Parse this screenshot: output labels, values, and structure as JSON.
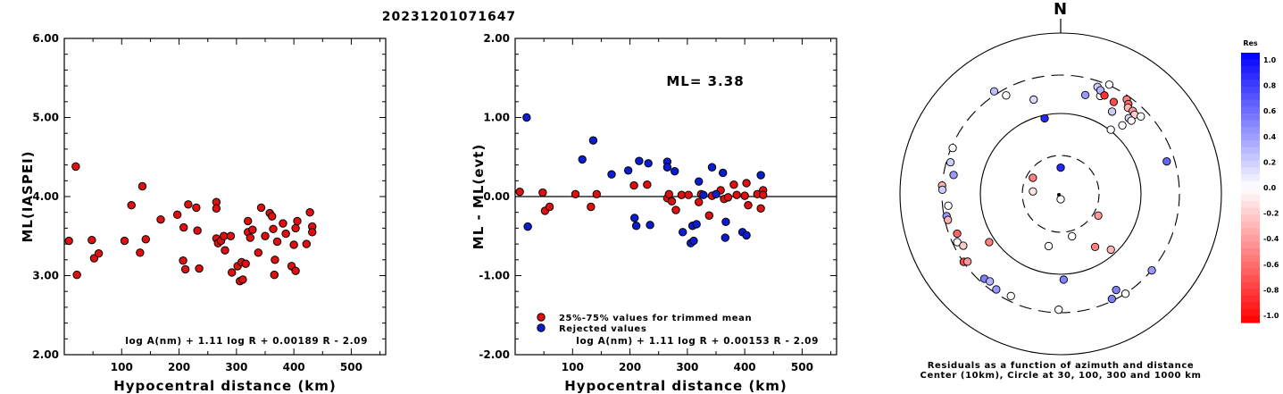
{
  "title": "20231201071647",
  "chart_data": [
    {
      "type": "scatter",
      "ylabel": "ML(IASPEI)",
      "xlabel": "Hypocentral distance (km)",
      "xlim": [
        0,
        560
      ],
      "ylim": [
        2.0,
        6.0
      ],
      "x_ticks": [
        "100",
        "200",
        "300",
        "400",
        "500"
      ],
      "y_ticks": [
        "2.00",
        "3.00",
        "4.00",
        "5.00",
        "6.00"
      ],
      "formula": "log A(nm) + 1.11 log R + 0.00189 R - 2.09",
      "marker_color": "#e01010",
      "points": [
        [
          8,
          3.44
        ],
        [
          20,
          4.38
        ],
        [
          22,
          3.01
        ],
        [
          48,
          3.45
        ],
        [
          52,
          3.22
        ],
        [
          60,
          3.28
        ],
        [
          105,
          3.44
        ],
        [
          117,
          3.89
        ],
        [
          132,
          3.29
        ],
        [
          136,
          4.13
        ],
        [
          142,
          3.46
        ],
        [
          168,
          3.71
        ],
        [
          197,
          3.77
        ],
        [
          207,
          3.19
        ],
        [
          208,
          3.61
        ],
        [
          211,
          3.08
        ],
        [
          216,
          3.9
        ],
        [
          230,
          3.86
        ],
        [
          232,
          3.57
        ],
        [
          235,
          3.09
        ],
        [
          265,
          3.93
        ],
        [
          265,
          3.85
        ],
        [
          265,
          3.47
        ],
        [
          268,
          3.41
        ],
        [
          273,
          3.44
        ],
        [
          278,
          3.5
        ],
        [
          280,
          3.32
        ],
        [
          290,
          3.5
        ],
        [
          292,
          3.04
        ],
        [
          302,
          3.12
        ],
        [
          306,
          2.93
        ],
        [
          309,
          3.17
        ],
        [
          311,
          2.95
        ],
        [
          316,
          3.15
        ],
        [
          320,
          3.69
        ],
        [
          320,
          3.55
        ],
        [
          324,
          3.48
        ],
        [
          328,
          3.58
        ],
        [
          338,
          3.29
        ],
        [
          343,
          3.86
        ],
        [
          350,
          3.5
        ],
        [
          358,
          3.79
        ],
        [
          362,
          3.75
        ],
        [
          364,
          3.59
        ],
        [
          366,
          3.01
        ],
        [
          367,
          3.2
        ],
        [
          371,
          3.43
        ],
        [
          381,
          3.66
        ],
        [
          386,
          3.53
        ],
        [
          396,
          3.12
        ],
        [
          400,
          3.39
        ],
        [
          403,
          3.6
        ],
        [
          403,
          3.06
        ],
        [
          406,
          3.69
        ],
        [
          422,
          3.4
        ],
        [
          428,
          3.8
        ],
        [
          432,
          3.62
        ],
        [
          432,
          3.55
        ]
      ]
    },
    {
      "type": "scatter",
      "ylabel": "ML - ML(evt)",
      "xlabel": "Hypocentral distance (km)",
      "xlim": [
        0,
        560
      ],
      "ylim": [
        -2.0,
        2.0
      ],
      "x_ticks": [
        "100",
        "200",
        "300",
        "400",
        "500"
      ],
      "y_ticks": [
        "-2.00",
        "-1.00",
        "0.00",
        "1.00",
        "2.00"
      ],
      "annotation": "ML=  3.38",
      "formula": "log A(nm) + 1.11 log R + 0.00153 R - 2.09",
      "legend": [
        {
          "label": "25%-75% values for trimmed mean",
          "color": "#e01010"
        },
        {
          "label": "Rejected values",
          "color": "#0a1ed0"
        }
      ],
      "accepted": [
        [
          8,
          0.06
        ],
        [
          48,
          0.05
        ],
        [
          52,
          -0.18
        ],
        [
          60,
          -0.13
        ],
        [
          105,
          0.03
        ],
        [
          132,
          -0.13
        ],
        [
          142,
          0.03
        ],
        [
          207,
          0.14
        ],
        [
          230,
          0.15
        ],
        [
          265,
          -0.02
        ],
        [
          268,
          0.03
        ],
        [
          273,
          -0.06
        ],
        [
          280,
          -0.17
        ],
        [
          290,
          0.02
        ],
        [
          302,
          0.02
        ],
        [
          320,
          -0.07
        ],
        [
          324,
          0.03
        ],
        [
          338,
          -0.24
        ],
        [
          343,
          0.01
        ],
        [
          358,
          0.08
        ],
        [
          364,
          -0.03
        ],
        [
          371,
          -0.01
        ],
        [
          381,
          0.15
        ],
        [
          386,
          0.02
        ],
        [
          400,
          0.01
        ],
        [
          403,
          0.17
        ],
        [
          406,
          -0.11
        ],
        [
          422,
          0.03
        ],
        [
          428,
          -0.15
        ],
        [
          432,
          0.08
        ],
        [
          432,
          0.02
        ]
      ],
      "rejected": [
        [
          20,
          1.0
        ],
        [
          22,
          -0.38
        ],
        [
          117,
          0.47
        ],
        [
          136,
          0.71
        ],
        [
          168,
          0.28
        ],
        [
          197,
          0.33
        ],
        [
          208,
          -0.27
        ],
        [
          211,
          -0.37
        ],
        [
          216,
          0.45
        ],
        [
          232,
          0.42
        ],
        [
          235,
          -0.36
        ],
        [
          265,
          0.44
        ],
        [
          265,
          0.37
        ],
        [
          278,
          0.32
        ],
        [
          292,
          -0.45
        ],
        [
          306,
          -0.59
        ],
        [
          309,
          -0.37
        ],
        [
          311,
          -0.56
        ],
        [
          316,
          -0.35
        ],
        [
          320,
          0.19
        ],
        [
          328,
          0.02
        ],
        [
          343,
          0.37
        ],
        [
          350,
          0.03
        ],
        [
          362,
          0.3
        ],
        [
          366,
          -0.52
        ],
        [
          367,
          -0.32
        ],
        [
          396,
          -0.45
        ],
        [
          403,
          -0.49
        ],
        [
          428,
          0.27
        ]
      ]
    },
    {
      "type": "polar-scatter",
      "north_label": "N",
      "caption_lines": [
        "Residuals as a function of azimuth and distance",
        "Center (10km), Circle at 30, 100, 300 and 1000 km"
      ],
      "colorbar": {
        "title": "Res",
        "ticks": [
          "1.0",
          "0.8",
          "0.6",
          "0.4",
          "0.2",
          "0.0",
          "-0.2",
          "-0.4",
          "-0.6",
          "-0.8",
          "-1.0"
        ],
        "max_color": "#0000ff",
        "min_color": "#ff0000"
      },
      "epicenter": [
        0,
        0
      ],
      "stations": [
        {
          "az": 0,
          "r": 0.49,
          "res": 0.85
        },
        {
          "az": 300,
          "r": 0.6,
          "res": -0.5
        },
        {
          "az": 275,
          "r": 0.52,
          "res": -0.1
        },
        {
          "az": 180,
          "r": 0.1,
          "res": 0.0
        },
        {
          "az": 165,
          "r": 0.82,
          "res": 0.0
        },
        {
          "az": 120,
          "r": 0.81,
          "res": -0.4
        },
        {
          "az": 32,
          "r": 1.81,
          "res": 0.2
        },
        {
          "az": 14,
          "r": 1.9,
          "res": 0.4
        },
        {
          "az": 22,
          "r": 1.97,
          "res": 0.0
        },
        {
          "az": 19,
          "r": 2.11,
          "res": 0.2
        },
        {
          "az": 21,
          "r": 2.07,
          "res": 0.3
        },
        {
          "az": 24,
          "r": 2.23,
          "res": 0.0
        },
        {
          "az": 327,
          "r": 2.28,
          "res": 0.25
        },
        {
          "az": 331,
          "r": 2.1,
          "res": 0.0
        },
        {
          "az": 344,
          "r": 1.83,
          "res": 0.15
        },
        {
          "az": 348,
          "r": 1.44,
          "res": 0.85
        },
        {
          "az": 35,
          "r": 2.15,
          "res": -0.5
        },
        {
          "az": 37,
          "r": 2.1,
          "res": -0.6
        },
        {
          "az": 38,
          "r": 2.04,
          "res": -0.3
        },
        {
          "az": 41,
          "r": 2.05,
          "res": -0.4
        },
        {
          "az": 43,
          "r": 2.02,
          "res": -0.2
        },
        {
          "az": 42,
          "r": 1.9,
          "res": 0.15
        },
        {
          "az": 44,
          "r": 1.9,
          "res": 0.0
        },
        {
          "az": 46,
          "r": 2.08,
          "res": 0.0
        },
        {
          "az": 42,
          "r": 1.72,
          "res": 0.0
        },
        {
          "az": 38,
          "r": 1.52,
          "res": 0.0
        },
        {
          "az": 30,
          "r": 1.98,
          "res": -0.7
        },
        {
          "az": 24,
          "r": 2.01,
          "res": -0.8
        },
        {
          "az": 73,
          "r": 2.07,
          "res": 0.6
        },
        {
          "az": 293,
          "r": 2.19,
          "res": 0.0
        },
        {
          "az": 286,
          "r": 2.14,
          "res": 0.2
        },
        {
          "az": 274,
          "r": 2.22,
          "res": -0.3
        },
        {
          "az": 272,
          "r": 2.21,
          "res": 0.2
        },
        {
          "az": 280,
          "r": 2.03,
          "res": 0.4
        },
        {
          "az": 264,
          "r": 2.11,
          "res": 0.0
        },
        {
          "az": 259,
          "r": 2.17,
          "res": 0.4
        },
        {
          "az": 257,
          "r": 2.16,
          "res": -0.3
        },
        {
          "az": 249,
          "r": 2.07,
          "res": -0.6
        },
        {
          "az": 245,
          "r": 2.13,
          "res": 0.0
        },
        {
          "az": 242,
          "r": 2.06,
          "res": -0.2
        },
        {
          "az": 235,
          "r": 2.21,
          "res": -0.7
        },
        {
          "az": 234,
          "r": 2.15,
          "res": -0.4
        },
        {
          "az": 222,
          "r": 2.13,
          "res": 0.5
        },
        {
          "az": 219,
          "r": 2.1,
          "res": 0.3
        },
        {
          "az": 214,
          "r": 2.15,
          "res": 0.4
        },
        {
          "az": 206,
          "r": 2.12,
          "res": 0.0
        },
        {
          "az": 181,
          "r": 2.16,
          "res": 0.0
        },
        {
          "az": 154,
          "r": 2.18,
          "res": 0.5
        },
        {
          "az": 147,
          "r": 2.22,
          "res": 0.0
        },
        {
          "az": 150,
          "r": 2.07,
          "res": 0.5
        },
        {
          "az": 130,
          "r": 2.22,
          "res": 0.4
        },
        {
          "az": 178,
          "r": 1.6,
          "res": 0.5
        },
        {
          "az": 236,
          "r": 1.61,
          "res": -0.5
        },
        {
          "az": 147,
          "r": 1.18,
          "res": -0.5
        },
        {
          "az": 138,
          "r": 1.4,
          "res": -0.3
        },
        {
          "az": 193,
          "r": 1.0,
          "res": 0.0
        }
      ]
    }
  ]
}
